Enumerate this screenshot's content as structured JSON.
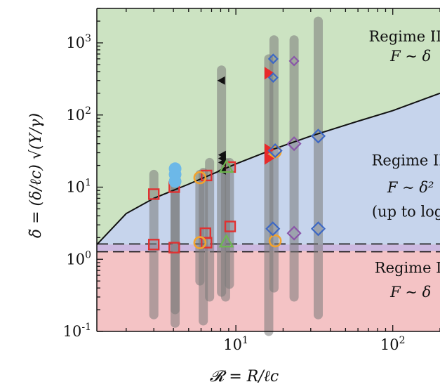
{
  "chart_data": {
    "type": "scatter",
    "x_scale": "log",
    "y_scale": "log",
    "xlim": [
      1.3,
      200
    ],
    "ylim": [
      0.1,
      3000
    ],
    "x_ticks": [
      {
        "value": 10,
        "base": "10",
        "exp": "1"
      },
      {
        "value": 100,
        "base": "10",
        "exp": "2"
      }
    ],
    "y_ticks": [
      {
        "value": 0.1,
        "base": "10",
        "exp": "-1"
      },
      {
        "value": 1,
        "base": "10",
        "exp": "0"
      },
      {
        "value": 10,
        "base": "10",
        "exp": "1"
      },
      {
        "value": 100,
        "base": "10",
        "exp": "2"
      },
      {
        "value": 1000,
        "base": "10",
        "exp": "3"
      }
    ],
    "xlabel": "𝓡 = R/ℓc",
    "ylabel": "δ̃ = (δ/ℓc) √(Y/γ)",
    "regime_labels": [
      {
        "id": "regime-3",
        "line1": "Regime III:",
        "line2": "F ∼ δ",
        "x": 130,
        "y1": 1050,
        "y2": 560
      },
      {
        "id": "regime-2",
        "line1": "Regime II:",
        "line2": "F ∼ δ²",
        "line3": "(up to log)",
        "x": 130,
        "y1": 20,
        "y2": 8.5,
        "y3": 3.9
      },
      {
        "id": "regime-1",
        "line1": "Regime I:",
        "line2": "F ∼ δ",
        "x": 130,
        "y1": 0.65,
        "y2": 0.3
      }
    ],
    "regions": {
      "regime3_color": "#cce3c2",
      "regime2_color": "#c6d4ec",
      "regime1_color": "#f4c3c5",
      "band_color": "#ccb8e0",
      "band": [
        1.3,
        1.6
      ]
    },
    "boundary_curve": [
      [
        1.3,
        1.6
      ],
      [
        2,
        4.3
      ],
      [
        3,
        7
      ],
      [
        5,
        11
      ],
      [
        8,
        17
      ],
      [
        10,
        21
      ],
      [
        17,
        33
      ],
      [
        30,
        51
      ],
      [
        60,
        82
      ],
      [
        100,
        115
      ],
      [
        200,
        200
      ]
    ],
    "dashed_lines": [
      1.27,
      1.63
    ],
    "bars": [
      {
        "x": 3.0,
        "ymin": 0.17,
        "ymax": 15
      },
      {
        "x": 4.1,
        "ymin": 0.2,
        "ymax": 16
      },
      {
        "x": 4.1,
        "ymin": 0.13,
        "ymax": 13
      },
      {
        "x": 5.9,
        "ymin": 0.5,
        "ymax": 15
      },
      {
        "x": 6.2,
        "ymin": 0.14,
        "ymax": 16
      },
      {
        "x": 6.8,
        "ymin": 0.3,
        "ymax": 22
      },
      {
        "x": 8.1,
        "ymin": 0.35,
        "ymax": 420
      },
      {
        "x": 8.6,
        "ymin": 0.3,
        "ymax": 22
      },
      {
        "x": 9.1,
        "ymin": 0.45,
        "ymax": 22
      },
      {
        "x": 16.2,
        "ymin": 0.1,
        "ymax": 600
      },
      {
        "x": 17.5,
        "ymin": 0.4,
        "ymax": 1100
      },
      {
        "x": 23.5,
        "ymin": 0.3,
        "ymax": 1100
      },
      {
        "x": 33.5,
        "ymin": 0.17,
        "ymax": 2000
      }
    ],
    "series": [
      {
        "marker": "square",
        "color": "#e03232",
        "points": [
          [
            3,
            8
          ],
          [
            4.05,
            10
          ],
          [
            6.5,
            14.5
          ],
          [
            3,
            1.6
          ],
          [
            4.05,
            1.45
          ],
          [
            6.4,
            2.3
          ],
          [
            6.5,
            1.7
          ],
          [
            9.2,
            2.85
          ],
          [
            9.2,
            19
          ]
        ]
      },
      {
        "marker": "circle",
        "color": "#6cb8e8",
        "points": [
          [
            4.1,
            18
          ],
          [
            4.1,
            15
          ],
          [
            4.1,
            12
          ]
        ]
      },
      {
        "marker": "circle-open",
        "color": "#f2a32c",
        "points": [
          [
            5.9,
            13.5
          ],
          [
            5.9,
            1.7
          ],
          [
            17.8,
            31
          ],
          [
            17.8,
            1.8
          ]
        ]
      },
      {
        "marker": "triangle-left",
        "color": "#111111",
        "points": [
          [
            8.1,
            300
          ],
          [
            8.2,
            28
          ],
          [
            8.2,
            25
          ],
          [
            8.2,
            22
          ],
          [
            8.2,
            17
          ]
        ]
      },
      {
        "marker": "triangle-up",
        "color": "#6eb852",
        "points": [
          [
            8.7,
            19
          ],
          [
            8.7,
            1.75
          ]
        ]
      },
      {
        "marker": "triangle-right",
        "color": "#e82a2a",
        "points": [
          [
            16.2,
            380
          ],
          [
            16.2,
            33
          ],
          [
            16.2,
            25
          ]
        ]
      },
      {
        "marker": "diamond",
        "color": "#3d68c4",
        "points": [
          [
            17.3,
            600
          ],
          [
            17.3,
            330
          ],
          [
            17.2,
            2.65
          ],
          [
            33.5,
            2.65
          ],
          [
            33.5,
            51
          ],
          [
            17.8,
            32
          ]
        ]
      },
      {
        "marker": "diamond",
        "color": "#8a57a8",
        "points": [
          [
            23.5,
            560
          ],
          [
            23.5,
            40
          ],
          [
            23.5,
            2.3
          ]
        ]
      }
    ]
  }
}
